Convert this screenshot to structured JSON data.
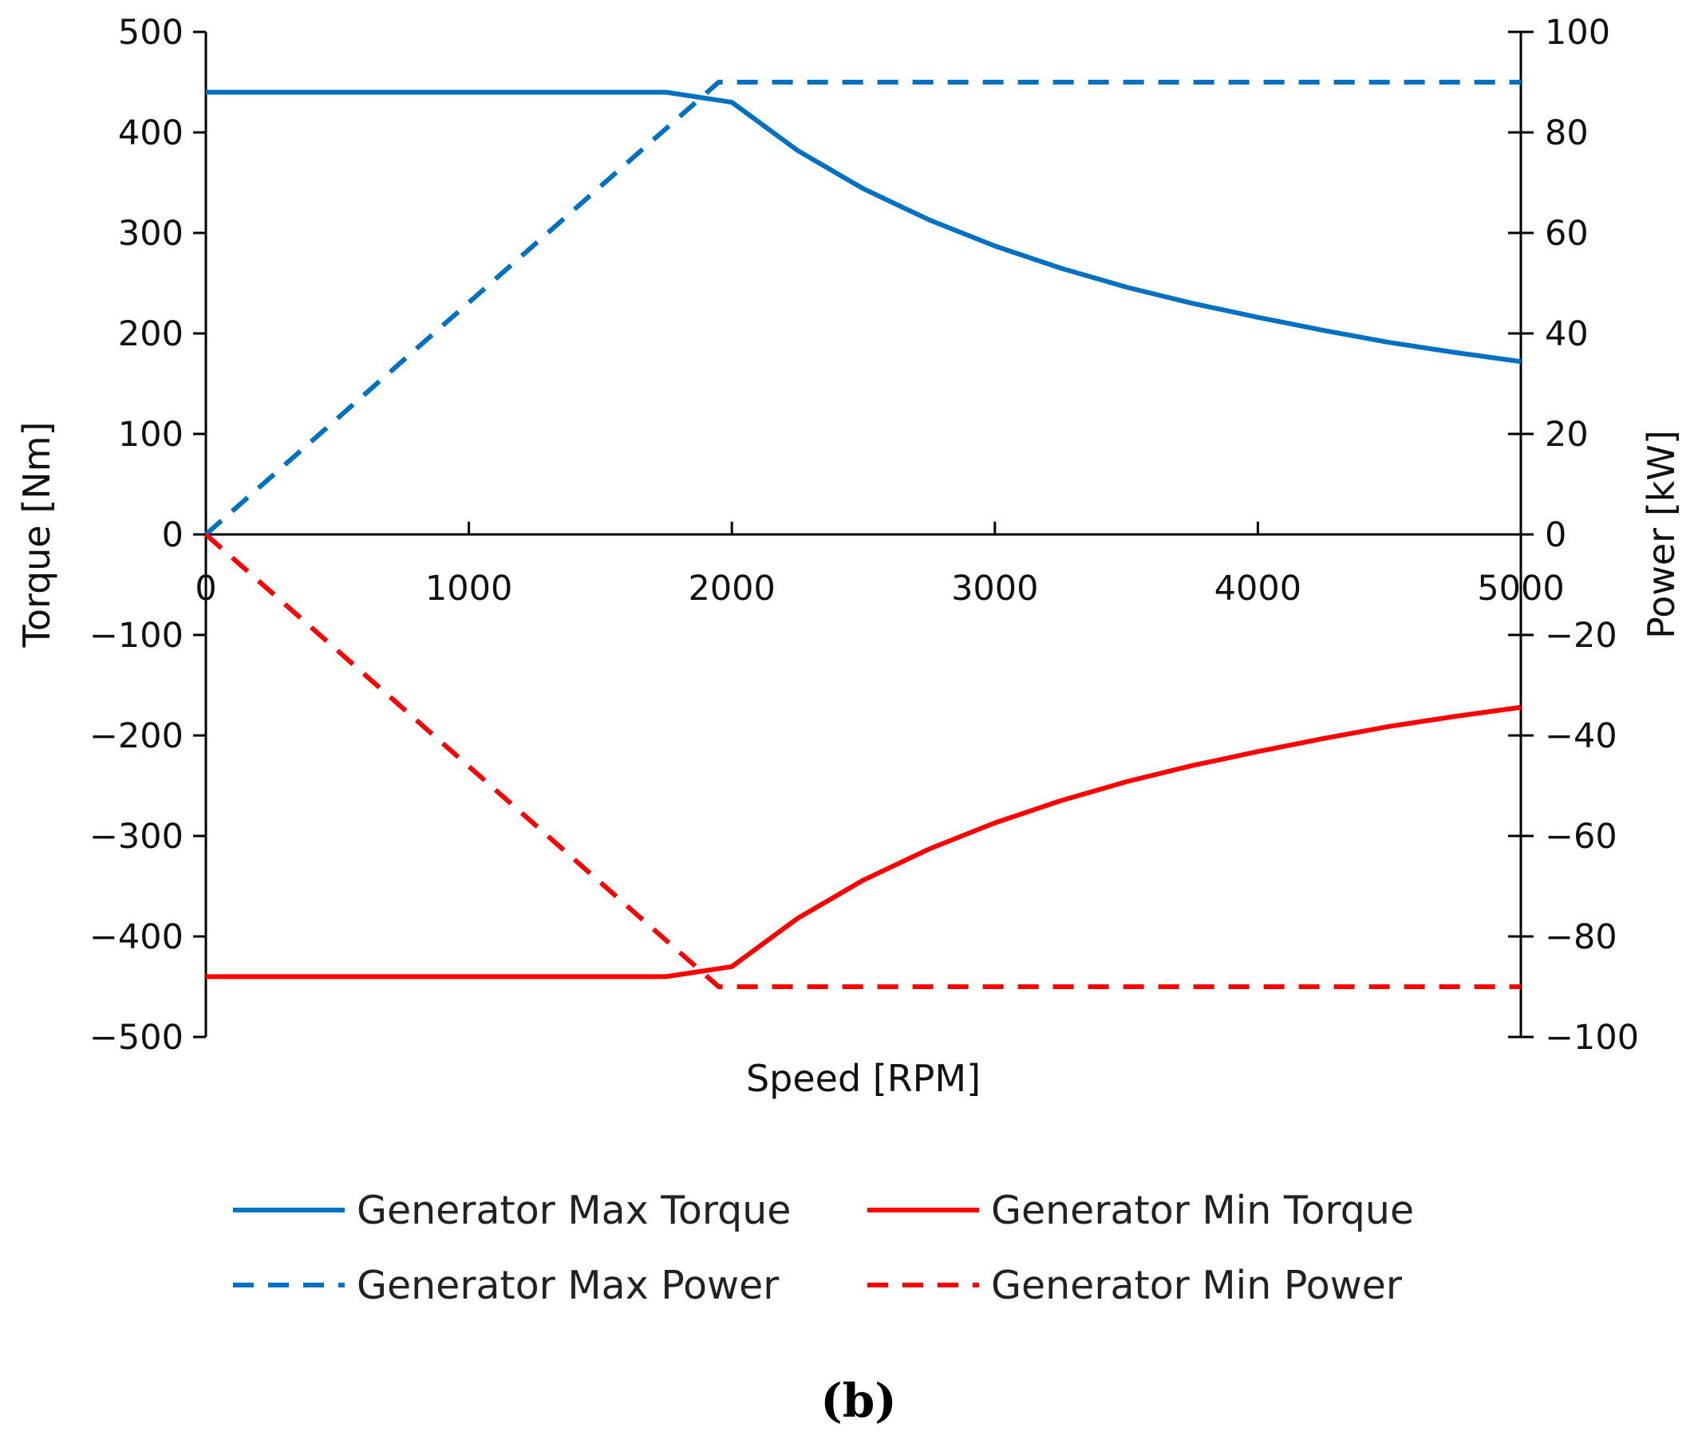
{
  "chart_data": {
    "type": "line",
    "title": "",
    "caption": "(b)",
    "xlabel": "Speed [RPM]",
    "ylabel_left": "Torque [Nm]",
    "ylabel_right": "Power [kW]",
    "xlim": [
      0,
      5000
    ],
    "ylim_left": [
      -500,
      500
    ],
    "ylim_right": [
      -100,
      100
    ],
    "x_ticks": [
      "0",
      "1000",
      "2000",
      "3000",
      "4000",
      "5000"
    ],
    "y_ticks_left": [
      "500",
      "400",
      "300",
      "200",
      "100",
      "0",
      "−100",
      "−200",
      "−300",
      "−400",
      "−500"
    ],
    "y_ticks_right": [
      "100",
      "80",
      "60",
      "40",
      "20",
      "0",
      "−20",
      "−40",
      "−60",
      "−80",
      "−100"
    ],
    "grid": false,
    "legend_position": "bottom",
    "series": [
      {
        "name": "Generator Max Torque",
        "axis": "left",
        "color": "#0070c0",
        "style": "solid",
        "x": [
          0,
          1750,
          2000,
          2250,
          2500,
          2750,
          3000,
          3250,
          3500,
          3750,
          4000,
          4250,
          4500,
          4750,
          5000
        ],
        "y": [
          440,
          440,
          430,
          382,
          344,
          313,
          287,
          265,
          246,
          230,
          216,
          203,
          191,
          181,
          172
        ]
      },
      {
        "name": "Generator Min Torque",
        "axis": "left",
        "color": "#ff0000",
        "style": "solid",
        "x": [
          0,
          1750,
          2000,
          2250,
          2500,
          2750,
          3000,
          3250,
          3500,
          3750,
          4000,
          4250,
          4500,
          4750,
          5000
        ],
        "y": [
          -440,
          -440,
          -430,
          -382,
          -344,
          -313,
          -287,
          -265,
          -246,
          -230,
          -216,
          -203,
          -191,
          -181,
          -172
        ]
      },
      {
        "name": "Generator Max Power",
        "axis": "right",
        "color": "#0070c0",
        "style": "dashed",
        "x": [
          0,
          1950,
          5000
        ],
        "y": [
          0,
          90,
          90
        ]
      },
      {
        "name": "Generator Min Power",
        "axis": "right",
        "color": "#ff0000",
        "style": "dashed",
        "x": [
          0,
          1950,
          5000
        ],
        "y": [
          0,
          -90,
          -90
        ]
      }
    ]
  }
}
